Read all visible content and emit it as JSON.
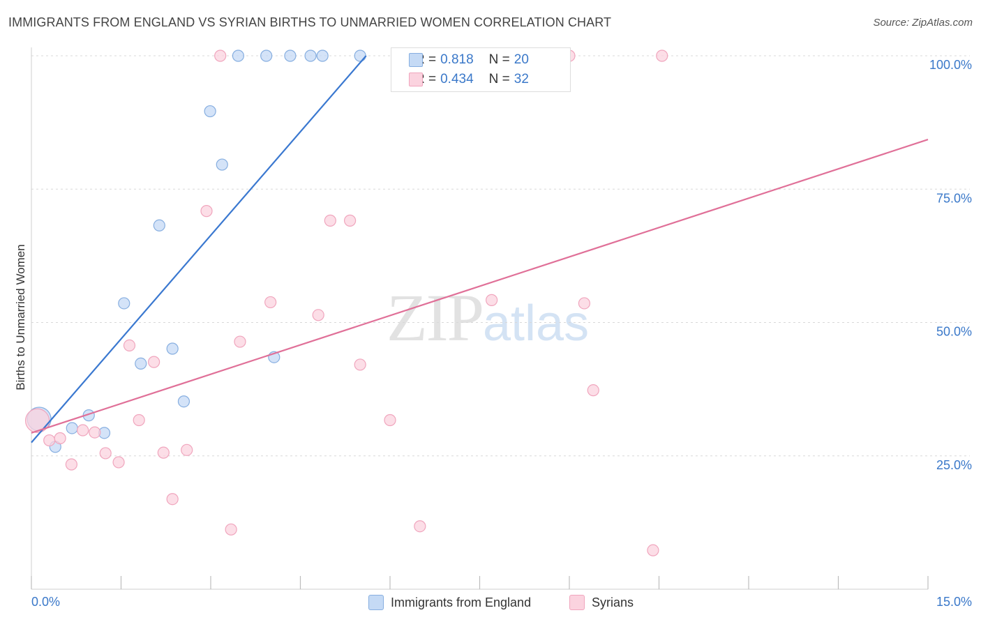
{
  "header": {
    "title": "IMMIGRANTS FROM ENGLAND VS SYRIAN BIRTHS TO UNMARRIED WOMEN CORRELATION CHART",
    "source": "Source: ZipAtlas.com"
  },
  "watermark": {
    "zip": "ZIP",
    "atlas": "atlas"
  },
  "legend_stats": [
    {
      "r_label": "R =",
      "r_value": "0.818",
      "n_label": "N =",
      "n_value": "20",
      "color": "#aac8ee"
    },
    {
      "r_label": "R =",
      "r_value": "0.434",
      "n_label": "N =",
      "n_value": "32",
      "color": "#f6bccd"
    }
  ],
  "chart_data": {
    "type": "scatter",
    "title": "IMMIGRANTS FROM ENGLAND VS SYRIAN BIRTHS TO UNMARRIED WOMEN CORRELATION CHART",
    "xlabel": "",
    "ylabel": "Births to Unmarried Women",
    "xlim": [
      0,
      15
    ],
    "ylim": [
      0,
      100
    ],
    "x_tick_labels": [
      {
        "value": 0,
        "label": "0.0%"
      },
      {
        "value": 15,
        "label": "15.0%"
      }
    ],
    "y_tick_labels": [
      {
        "value": 25,
        "label": "25.0%"
      },
      {
        "value": 50,
        "label": "50.0%"
      },
      {
        "value": 75,
        "label": "75.0%"
      },
      {
        "value": 100,
        "label": "100.0%"
      }
    ],
    "grid": true,
    "legend_placement": "bottom",
    "series": [
      {
        "name": "Immigrants from England",
        "color": "#3a78d0",
        "fill": "#c5daf5",
        "stroke": "#86aee0",
        "trend": [
          [
            0,
            27.5
          ],
          [
            5.6,
            100
          ]
        ],
        "points": [
          {
            "x": 0.13,
            "y": 31.9,
            "big": true
          },
          {
            "x": 0.4,
            "y": 26.7
          },
          {
            "x": 0.68,
            "y": 30.2
          },
          {
            "x": 0.96,
            "y": 32.6
          },
          {
            "x": 1.22,
            "y": 29.3
          },
          {
            "x": 1.55,
            "y": 53.6
          },
          {
            "x": 1.83,
            "y": 42.3
          },
          {
            "x": 2.14,
            "y": 68.2
          },
          {
            "x": 2.36,
            "y": 45.1
          },
          {
            "x": 2.55,
            "y": 35.2
          },
          {
            "x": 2.99,
            "y": 89.6
          },
          {
            "x": 3.19,
            "y": 79.6
          },
          {
            "x": 3.46,
            "y": 100
          },
          {
            "x": 3.93,
            "y": 100
          },
          {
            "x": 4.33,
            "y": 100
          },
          {
            "x": 4.67,
            "y": 100
          },
          {
            "x": 4.87,
            "y": 100
          },
          {
            "x": 4.06,
            "y": 43.5
          },
          {
            "x": 5.5,
            "y": 100
          },
          {
            "x": 8.7,
            "y": 100
          }
        ]
      },
      {
        "name": "Syrians",
        "color": "#e07098",
        "fill": "#fbd3df",
        "stroke": "#f0a5bd",
        "trend": [
          [
            0,
            29.3
          ],
          [
            15,
            84.3
          ]
        ],
        "points": [
          {
            "x": 0.1,
            "y": 31.6,
            "big": true
          },
          {
            "x": 0.3,
            "y": 27.9
          },
          {
            "x": 0.48,
            "y": 28.3
          },
          {
            "x": 0.67,
            "y": 23.4
          },
          {
            "x": 0.86,
            "y": 29.8
          },
          {
            "x": 1.06,
            "y": 29.4
          },
          {
            "x": 1.24,
            "y": 25.5
          },
          {
            "x": 1.46,
            "y": 23.8
          },
          {
            "x": 1.64,
            "y": 45.7
          },
          {
            "x": 1.8,
            "y": 31.7
          },
          {
            "x": 2.05,
            "y": 42.6
          },
          {
            "x": 2.21,
            "y": 25.6
          },
          {
            "x": 2.36,
            "y": 16.9
          },
          {
            "x": 2.6,
            "y": 26.1
          },
          {
            "x": 2.93,
            "y": 70.9
          },
          {
            "x": 3.16,
            "y": 100
          },
          {
            "x": 3.34,
            "y": 11.2
          },
          {
            "x": 3.49,
            "y": 46.4
          },
          {
            "x": 4.0,
            "y": 53.8
          },
          {
            "x": 4.8,
            "y": 51.4
          },
          {
            "x": 5.0,
            "y": 69.1
          },
          {
            "x": 5.33,
            "y": 69.1
          },
          {
            "x": 5.5,
            "y": 42.1
          },
          {
            "x": 6.0,
            "y": 31.7
          },
          {
            "x": 6.5,
            "y": 11.8
          },
          {
            "x": 7.7,
            "y": 54.2
          },
          {
            "x": 8.8,
            "y": 100
          },
          {
            "x": 9.0,
            "y": 100
          },
          {
            "x": 9.25,
            "y": 53.6
          },
          {
            "x": 9.4,
            "y": 37.3
          },
          {
            "x": 10.4,
            "y": 7.3
          },
          {
            "x": 10.55,
            "y": 100
          }
        ]
      }
    ]
  }
}
